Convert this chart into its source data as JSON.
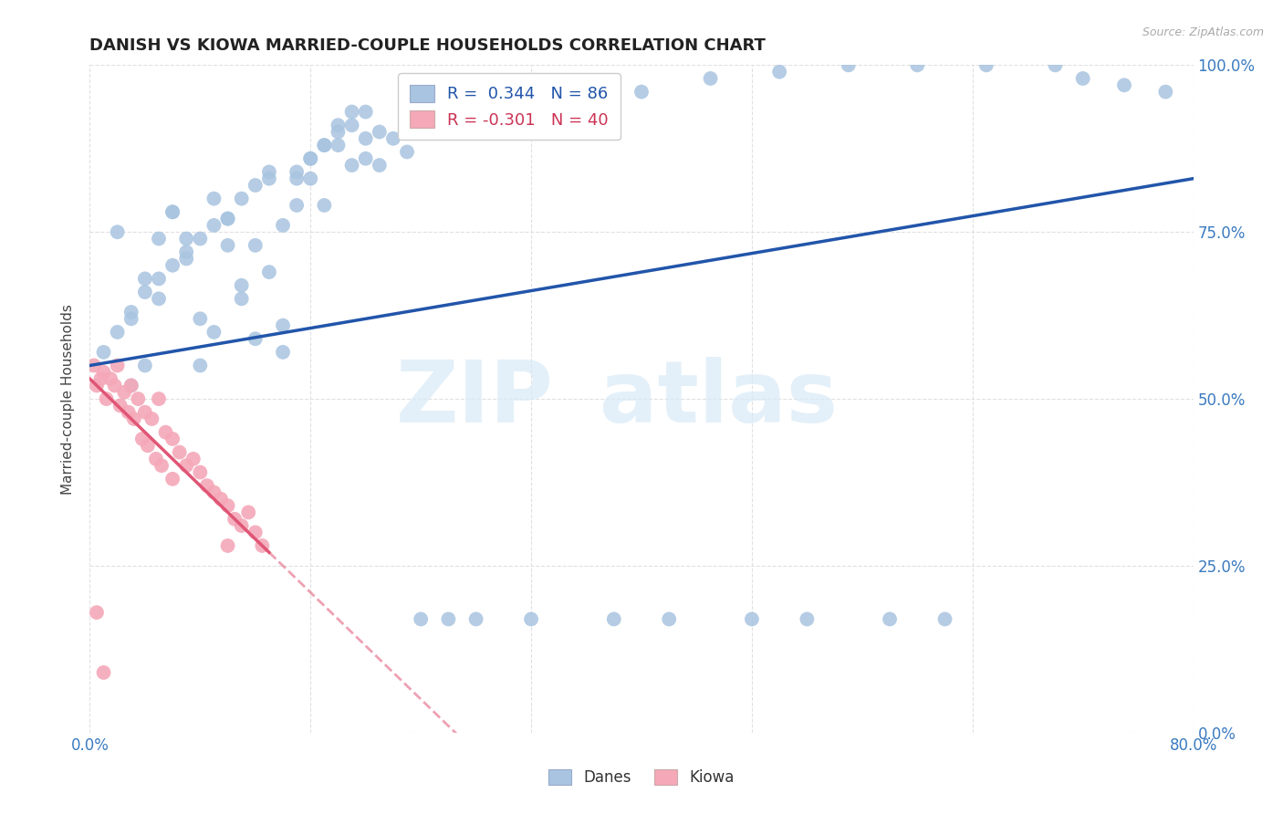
{
  "title": "DANISH VS KIOWA MARRIED-COUPLE HOUSEHOLDS CORRELATION CHART",
  "source": "Source: ZipAtlas.com",
  "ylabel": "Married-couple Households",
  "legend_label1": "Danes",
  "legend_label2": "Kiowa",
  "r_danes": "0.344",
  "n_danes": "86",
  "r_kiowa": "-0.301",
  "n_kiowa": "40",
  "danes_color": "#a8c4e0",
  "kiowa_color": "#f4a8b8",
  "danes_line_color": "#2255aa",
  "kiowa_line_color": "#e05575",
  "xlim": [
    0,
    80
  ],
  "ylim": [
    0,
    100
  ],
  "danes_scatter_x": [
    1,
    2,
    3,
    4,
    5,
    6,
    7,
    8,
    9,
    10,
    11,
    12,
    13,
    14,
    15,
    16,
    17,
    18,
    19,
    20,
    2,
    3,
    4,
    5,
    6,
    7,
    8,
    9,
    10,
    11,
    12,
    13,
    14,
    15,
    16,
    17,
    18,
    19,
    20,
    21,
    3,
    4,
    5,
    6,
    7,
    8,
    9,
    10,
    11,
    12,
    13,
    14,
    15,
    16,
    17,
    18,
    19,
    20,
    21,
    22,
    23,
    24,
    25,
    27,
    30,
    35,
    40,
    45,
    50,
    55,
    60,
    65,
    70,
    72,
    75,
    78,
    24,
    26,
    28,
    32,
    38,
    42,
    48,
    52,
    58,
    62
  ],
  "danes_scatter_y": [
    57,
    60,
    63,
    66,
    68,
    70,
    72,
    74,
    76,
    77,
    80,
    82,
    84,
    61,
    83,
    86,
    88,
    90,
    91,
    93,
    75,
    62,
    55,
    74,
    78,
    71,
    62,
    80,
    77,
    65,
    73,
    83,
    57,
    79,
    86,
    88,
    91,
    93,
    89,
    85,
    52,
    68,
    65,
    78,
    74,
    55,
    60,
    73,
    67,
    59,
    69,
    76,
    84,
    83,
    79,
    88,
    85,
    86,
    90,
    89,
    87,
    91,
    93,
    94,
    95,
    97,
    96,
    98,
    99,
    100,
    100,
    100,
    100,
    98,
    97,
    96,
    17,
    17,
    17,
    17,
    17,
    17,
    17,
    17,
    17,
    17
  ],
  "kiowa_scatter_x": [
    0.5,
    1,
    1.5,
    2,
    2.5,
    3,
    3.5,
    4,
    4.5,
    5,
    5.5,
    6,
    6.5,
    7,
    7.5,
    8,
    8.5,
    9,
    9.5,
    10,
    10.5,
    11,
    11.5,
    12,
    12.5,
    0.3,
    0.8,
    1.2,
    1.8,
    2.2,
    2.8,
    3.2,
    3.8,
    4.2,
    4.8,
    5.2,
    0.5,
    1.0,
    6,
    10
  ],
  "kiowa_scatter_y": [
    52,
    54,
    53,
    55,
    51,
    52,
    50,
    48,
    47,
    50,
    45,
    44,
    42,
    40,
    41,
    39,
    37,
    36,
    35,
    34,
    32,
    31,
    33,
    30,
    28,
    55,
    53,
    50,
    52,
    49,
    48,
    47,
    44,
    43,
    41,
    40,
    18,
    9,
    38,
    28
  ],
  "danes_trendline": [
    0,
    80,
    55,
    83
  ],
  "kiowa_solid_end_x": 13,
  "kiowa_trendline_slope": -2.0,
  "kiowa_trendline_intercept": 53,
  "background_color": "#ffffff",
  "grid_color": "#e0e0e0",
  "xtick_labels": [
    "0.0%",
    "",
    "",
    "",
    "",
    "80.0%"
  ],
  "xtick_positions": [
    0,
    16,
    32,
    48,
    64,
    80
  ],
  "ytick_labels": [
    "0.0%",
    "25.0%",
    "50.0%",
    "75.0%",
    "100.0%"
  ],
  "ytick_positions": [
    0,
    25,
    50,
    75,
    100
  ],
  "watermark_zip": "ZIP",
  "watermark_atlas": "atlas"
}
